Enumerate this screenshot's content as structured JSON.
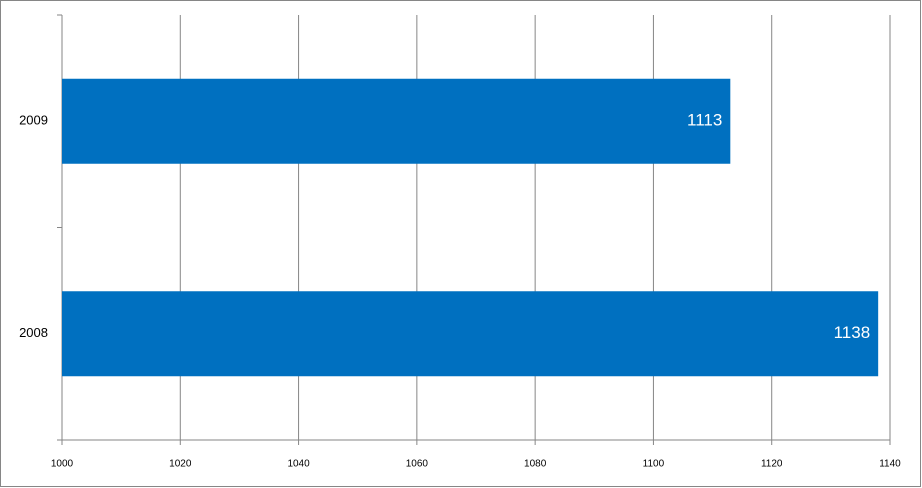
{
  "chart_data": {
    "type": "barh",
    "categories": [
      "2008",
      "2009"
    ],
    "values": [
      1138,
      1113
    ],
    "color": "#0070c0",
    "xlim": [
      1000,
      1140
    ],
    "xticks": [
      1000,
      1020,
      1040,
      1060,
      1080,
      1100,
      1120,
      1140
    ],
    "grid": true
  }
}
